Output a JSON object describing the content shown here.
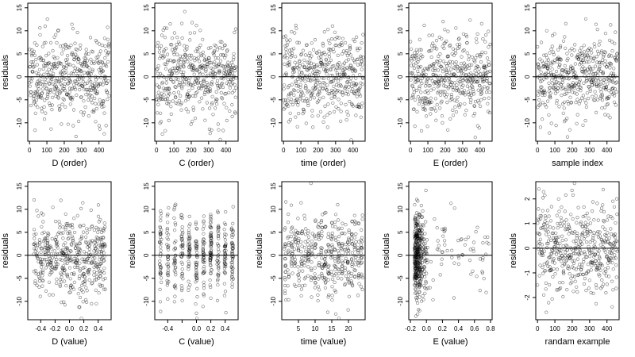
{
  "chart_data": [
    {
      "type": "scatter",
      "xlabel": "D (order)",
      "ylabel": "residuals",
      "xlim": [
        -10,
        470
      ],
      "ylim": [
        -14,
        16
      ],
      "xticks": [
        0,
        100,
        200,
        300,
        400
      ],
      "yticks": [
        -10,
        -5,
        0,
        5,
        10,
        15
      ],
      "xtick_labels": [
        "0",
        "100",
        "200",
        "300",
        "400"
      ],
      "ytick_labels": [
        "-10",
        "-5",
        "0",
        "5",
        "10",
        "15"
      ],
      "x_kind": "index",
      "noise_sd": 4.6,
      "n": 460,
      "marker": "open-circle",
      "reference_line_y": 0,
      "seed": 11
    },
    {
      "type": "scatter",
      "xlabel": "C (order)",
      "ylabel": "residuals",
      "xlim": [
        -10,
        470
      ],
      "ylim": [
        -14,
        16
      ],
      "xticks": [
        0,
        100,
        200,
        300,
        400
      ],
      "yticks": [
        -10,
        -5,
        0,
        5,
        10,
        15
      ],
      "xtick_labels": [
        "0",
        "100",
        "200",
        "300",
        "400"
      ],
      "ytick_labels": [
        "-10",
        "-5",
        "0",
        "5",
        "10",
        "15"
      ],
      "x_kind": "index",
      "noise_sd": 4.6,
      "n": 460,
      "marker": "open-circle",
      "reference_line_y": 0,
      "seed": 23
    },
    {
      "type": "scatter",
      "xlabel": "time (order)",
      "ylabel": "residuals",
      "xlim": [
        -10,
        470
      ],
      "ylim": [
        -14,
        16
      ],
      "xticks": [
        0,
        100,
        200,
        300,
        400
      ],
      "yticks": [
        -10,
        -5,
        0,
        5,
        10,
        15
      ],
      "xtick_labels": [
        "0",
        "100",
        "200",
        "300",
        "400"
      ],
      "ytick_labels": [
        "-10",
        "-5",
        "0",
        "5",
        "10",
        "15"
      ],
      "x_kind": "index",
      "noise_sd": 4.6,
      "n": 460,
      "marker": "open-circle",
      "reference_line_y": 0,
      "seed": 37
    },
    {
      "type": "scatter",
      "xlabel": "E (order)",
      "ylabel": "residuals",
      "xlim": [
        -10,
        470
      ],
      "ylim": [
        -14,
        16
      ],
      "xticks": [
        0,
        100,
        200,
        300,
        400
      ],
      "yticks": [
        -10,
        -5,
        0,
        5,
        10,
        15
      ],
      "xtick_labels": [
        "0",
        "100",
        "200",
        "300",
        "400"
      ],
      "ytick_labels": [
        "-10",
        "-5",
        "0",
        "5",
        "10",
        "15"
      ],
      "x_kind": "index",
      "noise_sd": 4.6,
      "n": 460,
      "marker": "open-circle",
      "reference_line_y": 0,
      "seed": 41
    },
    {
      "type": "scatter",
      "xlabel": "sample index",
      "ylabel": "residuals",
      "xlim": [
        -10,
        470
      ],
      "ylim": [
        -14,
        16
      ],
      "xticks": [
        0,
        100,
        200,
        300,
        400
      ],
      "yticks": [
        -10,
        -5,
        0,
        5,
        10,
        15
      ],
      "xtick_labels": [
        "0",
        "100",
        "200",
        "300",
        "400"
      ],
      "ytick_labels": [
        "-10",
        "-5",
        "0",
        "5",
        "10",
        "15"
      ],
      "x_kind": "index",
      "noise_sd": 4.6,
      "n": 460,
      "marker": "open-circle",
      "reference_line_y": 0,
      "seed": 53
    },
    {
      "type": "scatter",
      "xlabel": "D (value)",
      "ylabel": "residuals",
      "xlim": [
        -0.58,
        0.58
      ],
      "ylim": [
        -14,
        16
      ],
      "xticks": [
        -0.4,
        -0.2,
        0,
        0.2,
        0.4
      ],
      "yticks": [
        -10,
        -5,
        0,
        5,
        10,
        15
      ],
      "xtick_labels": [
        "-0.4",
        "-0.2",
        "0.0",
        "0.2",
        "0.4"
      ],
      "ytick_labels": [
        "-10",
        "-5",
        "0",
        "5",
        "10",
        "15"
      ],
      "x_kind": "uniform",
      "x_range": [
        -0.5,
        0.5
      ],
      "noise_sd": 4.6,
      "n": 460,
      "marker": "open-circle",
      "reference_line_y": 0,
      "seed": 61
    },
    {
      "type": "scatter",
      "xlabel": "C (value)",
      "ylabel": "residuals",
      "xlim": [
        -0.58,
        0.58
      ],
      "ylim": [
        -14,
        16
      ],
      "xticks": [
        -0.4,
        -0.2,
        0,
        0.2,
        0.4
      ],
      "yticks": [
        -10,
        -5,
        0,
        5,
        10,
        15
      ],
      "xtick_labels": [
        "-0.4",
        "",
        "0.0",
        "0.2",
        "0.4"
      ],
      "ytick_labels": [
        "-10",
        "-5",
        "0",
        "5",
        "10",
        "15"
      ],
      "x_kind": "discrete",
      "x_levels": [
        -0.5,
        -0.4,
        -0.3,
        -0.2,
        -0.1,
        0.0,
        0.1,
        0.2,
        0.3,
        0.4,
        0.5
      ],
      "noise_sd": 4.6,
      "n": 460,
      "marker": "open-circle",
      "reference_line_y": 0,
      "seed": 71
    },
    {
      "type": "scatter",
      "xlabel": "time (value)",
      "ylabel": "residuals",
      "xlim": [
        0,
        25
      ],
      "ylim": [
        -14,
        16
      ],
      "xticks": [
        5,
        10,
        15,
        20
      ],
      "yticks": [
        -10,
        -5,
        0,
        5,
        10,
        15
      ],
      "xtick_labels": [
        "5",
        "10",
        "15",
        "20"
      ],
      "ytick_labels": [
        "-10",
        "-5",
        "0",
        "5",
        "10",
        "15"
      ],
      "x_kind": "discrete",
      "x_levels": [
        1,
        2,
        3,
        4,
        5,
        6,
        7,
        8,
        9,
        10,
        11,
        12,
        13,
        14,
        15,
        16,
        17,
        18,
        19,
        20,
        21,
        22,
        23,
        24
      ],
      "noise_sd": 4.6,
      "n": 460,
      "marker": "open-circle",
      "reference_line_y": 0,
      "seed": 83
    },
    {
      "type": "scatter",
      "xlabel": "E (value)",
      "ylabel": "residuals",
      "xlim": [
        -0.22,
        0.82
      ],
      "ylim": [
        -14,
        16
      ],
      "xticks": [
        -0.2,
        0,
        0.2,
        0.4,
        0.6,
        0.8
      ],
      "yticks": [
        -10,
        -5,
        0,
        5,
        10,
        15
      ],
      "xtick_labels": [
        "-0.2",
        "0.0",
        "0.2",
        "0.4",
        "0.6",
        "0.8"
      ],
      "ytick_labels": [
        "-10",
        "-5",
        "0",
        "5",
        "10",
        "15"
      ],
      "x_kind": "skewed",
      "x_range": [
        -0.15,
        0.8
      ],
      "noise_sd": 4.6,
      "n": 460,
      "marker": "open-circle",
      "reference_line_y": 0,
      "seed": 97
    },
    {
      "type": "scatter",
      "xlabel": "randam example",
      "ylabel": "residuals",
      "xlim": [
        -10,
        470
      ],
      "ylim": [
        -2.9,
        2.7
      ],
      "xticks": [
        0,
        100,
        200,
        300,
        400
      ],
      "yticks": [
        -2,
        -1,
        0,
        1,
        2
      ],
      "xtick_labels": [
        "0",
        "100",
        "200",
        "300",
        "400"
      ],
      "ytick_labels": [
        "-2",
        "-1",
        "0",
        "1",
        "2"
      ],
      "x_kind": "index",
      "noise_sd": 0.95,
      "n": 460,
      "marker": "open-circle",
      "reference_line_y": 0,
      "seed": 113
    }
  ]
}
